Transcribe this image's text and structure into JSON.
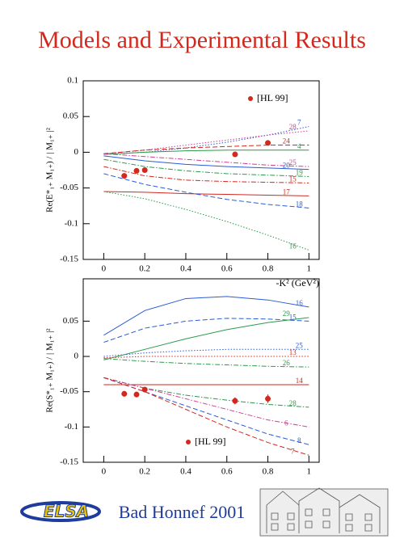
{
  "slide": {
    "title": "Models and Experimental Results",
    "footer": "Bad Honnef 2001",
    "logo": "ELSA"
  },
  "chart_data": [
    {
      "type": "line",
      "ylabel": "Re(E*₁₊ M₁₊) / | M₁₊ |²",
      "xlabel": "-K² (GeV²)",
      "x": [
        0,
        0.2,
        0.4,
        0.6,
        0.8,
        1
      ],
      "xlim": [
        -0.1,
        1.05
      ],
      "ylim": [
        -0.15,
        0.1
      ],
      "xticks": [
        0,
        0.2,
        0.4,
        0.6,
        0.8,
        1
      ],
      "yticks": [
        -0.15,
        -0.1,
        -0.05,
        0,
        0.05,
        0.1
      ],
      "legend": "upper right",
      "series": [
        {
          "name": "7",
          "color": "#2a5bd7",
          "dash": "dotted",
          "values": [
            -0.003,
            0.0,
            0.006,
            0.014,
            0.024,
            0.036
          ]
        },
        {
          "name": "28",
          "color": "#d23c96",
          "dash": "dotted",
          "values": [
            -0.002,
            0.003,
            0.01,
            0.017,
            0.024,
            0.03
          ]
        },
        {
          "name": "24",
          "color": "#d2281e",
          "dash": "dashed",
          "values": [
            -0.002,
            0.003,
            0.006,
            0.008,
            0.01,
            0.01
          ]
        },
        {
          "name": "4",
          "color": "#2a9a4a",
          "dash": "solid",
          "values": [
            -0.003,
            0.0,
            0.002,
            0.003,
            0.003,
            0.003
          ]
        },
        {
          "name": "25",
          "color": "#d23c96",
          "dash": "dashdot",
          "values": [
            -0.002,
            -0.006,
            -0.01,
            -0.014,
            -0.018,
            -0.02
          ]
        },
        {
          "name": "20",
          "color": "#2a5bd7",
          "dash": "solid",
          "values": [
            -0.005,
            -0.012,
            -0.017,
            -0.02,
            -0.022,
            -0.024
          ]
        },
        {
          "name": "19",
          "color": "#2a9a4a",
          "dash": "dashdot",
          "values": [
            -0.01,
            -0.02,
            -0.026,
            -0.03,
            -0.032,
            -0.034
          ]
        },
        {
          "name": "15",
          "color": "#d2281e",
          "dash": "dashdot",
          "values": [
            -0.02,
            -0.033,
            -0.039,
            -0.041,
            -0.042,
            -0.043
          ]
        },
        {
          "name": "17",
          "color": "#d2281e",
          "dash": "solid",
          "values": [
            -0.055,
            -0.056,
            -0.058,
            -0.059,
            -0.06,
            -0.061
          ]
        },
        {
          "name": "18",
          "color": "#2a5bd7",
          "dash": "dashed",
          "values": [
            -0.03,
            -0.045,
            -0.056,
            -0.066,
            -0.073,
            -0.078
          ]
        },
        {
          "name": "16",
          "color": "#2a9a4a",
          "dash": "dotted",
          "values": [
            -0.055,
            -0.065,
            -0.08,
            -0.097,
            -0.116,
            -0.137
          ]
        }
      ],
      "points": {
        "name": "[HL 99]",
        "color": "#d2281e",
        "x": [
          0.1,
          0.16,
          0.2,
          0.64,
          0.8
        ],
        "values": [
          -0.033,
          -0.026,
          -0.025,
          -0.003,
          0.013
        ],
        "errors": [
          0.003,
          0.003,
          0.003,
          0.003,
          0.003
        ]
      }
    },
    {
      "type": "line",
      "ylabel": "Re(S*₁₊ M₁₊) / | M₁₊ |²",
      "x": [
        0,
        0.2,
        0.4,
        0.6,
        0.8,
        1
      ],
      "xlim": [
        -0.1,
        1.05
      ],
      "ylim": [
        -0.15,
        0.11
      ],
      "xticks": [
        0,
        0.2,
        0.4,
        0.6,
        0.8,
        1
      ],
      "yticks": [
        -0.15,
        -0.1,
        -0.05,
        0,
        0.05
      ],
      "legend": "lower left",
      "series": [
        {
          "name": "16",
          "color": "#2a5bd7",
          "dash": "solid",
          "values": [
            0.03,
            0.065,
            0.082,
            0.085,
            0.08,
            0.07
          ]
        },
        {
          "name": "15",
          "color": "#2a5bd7",
          "dash": "dashed",
          "values": [
            0.02,
            0.04,
            0.05,
            0.054,
            0.053,
            0.05
          ]
        },
        {
          "name": "29",
          "color": "#2a9a4a",
          "dash": "solid",
          "values": [
            -0.005,
            0.01,
            0.025,
            0.038,
            0.048,
            0.055
          ]
        },
        {
          "name": "25",
          "color": "#2a5bd7",
          "dash": "dotted",
          "values": [
            0.0,
            0.005,
            0.008,
            0.01,
            0.01,
            0.01
          ]
        },
        {
          "name": "13",
          "color": "#d2281e",
          "dash": "dotted",
          "values": [
            -0.002,
            0.0,
            0.0,
            0.0,
            0.0,
            0.0
          ]
        },
        {
          "name": "26",
          "color": "#2a9a4a",
          "dash": "dashdot",
          "values": [
            -0.003,
            -0.007,
            -0.01,
            -0.012,
            -0.014,
            -0.015
          ]
        },
        {
          "name": "14",
          "color": "#d2281e",
          "dash": "solid",
          "values": [
            -0.04,
            -0.04,
            -0.04,
            -0.04,
            -0.04,
            -0.04
          ]
        },
        {
          "name": "28",
          "color": "#2a9a4a",
          "dash": "dashdot",
          "values": [
            -0.03,
            -0.045,
            -0.055,
            -0.062,
            -0.068,
            -0.072
          ]
        },
        {
          "name": "6",
          "color": "#d23c96",
          "dash": "dashdot",
          "values": [
            -0.03,
            -0.045,
            -0.06,
            -0.075,
            -0.09,
            -0.1
          ]
        },
        {
          "name": "8",
          "color": "#2a5bd7",
          "dash": "dashed",
          "values": [
            -0.03,
            -0.05,
            -0.07,
            -0.09,
            -0.11,
            -0.125
          ]
        },
        {
          "name": "7",
          "color": "#d2281e",
          "dash": "dashed",
          "values": [
            -0.03,
            -0.05,
            -0.075,
            -0.1,
            -0.122,
            -0.14
          ]
        }
      ],
      "points": {
        "name": "[HL 99]",
        "color": "#d2281e",
        "x": [
          0.1,
          0.16,
          0.2,
          0.64,
          0.8
        ],
        "values": [
          -0.053,
          -0.054,
          -0.047,
          -0.063,
          -0.06
        ],
        "errors": [
          0.004,
          0.004,
          0.004,
          0.005,
          0.006
        ]
      }
    }
  ]
}
